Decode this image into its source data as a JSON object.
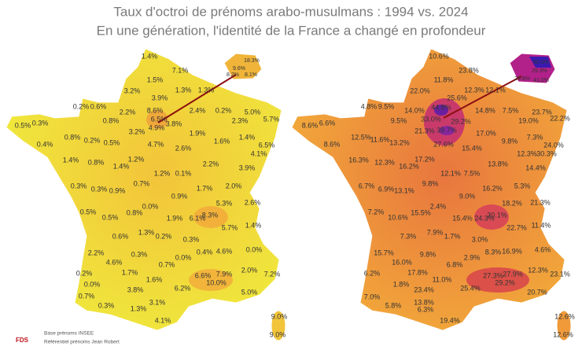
{
  "title": "Taux d'octroi de prénoms arabo-musulmans : 1994 vs. 2024",
  "subtitle": "En une génération, l'identité de la France a changé en profondeur",
  "maps": [
    {
      "labels": [
        "1.4%",
        "7.1%",
        "1.5%",
        "3.2%",
        "3.9%",
        "1.3%",
        "1.3%",
        "0.2%",
        "0.6%",
        "2.2%",
        "8.6%",
        "2.4%",
        "0.2%",
        "5.0%",
        "0.8%",
        "6.5%",
        "4.9%",
        "3.8%",
        "2.3%",
        "5.7%",
        "0.5%",
        "0.3%",
        "3.2%",
        "1.9%",
        "1.6%",
        "1.4%",
        "0.8%",
        "0.2%",
        "0.5%",
        "4.7%",
        "2.6%",
        "6.5%",
        "4.1%",
        "0.4%",
        "1.4%",
        "0.8%",
        "1.2%",
        "1.4%",
        "2.2%",
        "3.9%",
        "1.2%",
        "0.1%",
        "0.3%",
        "0.3%",
        "0.9%",
        "0.7%",
        "1.7%",
        "2.0%",
        "0.9%",
        "5.3%",
        "2.6%",
        "0.5%",
        "0.5%",
        "0.8%",
        "0.0%",
        "1.9%",
        "6.1%",
        "8.3%",
        "5.7%",
        "1.4%",
        "0.6%",
        "1.3%",
        "0.2%",
        "0.3%",
        "2.2%",
        "0.3%",
        "0.4%",
        "4.6%",
        "0.0%",
        "4.6%",
        "0.7%",
        "0.0%",
        "0.2%",
        "1.7%",
        "6.6%",
        "7.9%",
        "2.0%",
        "7.2%",
        "0.0%",
        "1.6%",
        "0.7%",
        "3.8%",
        "6.2%",
        "10.0%",
        "5.0%",
        "0.3%",
        "1.3%",
        "3.1%",
        "4.1%",
        "9.0%",
        "9.0%"
      ],
      "inset_labels": [
        "18.3%",
        "9.6%",
        "8.2%",
        "8.1%"
      ]
    },
    {
      "labels": [
        "10.6%",
        "23.8%",
        "11.8%",
        "22.0%",
        "25.6%",
        "12.3%",
        "12.1%",
        "4.8%",
        "9.5%",
        "14.0%",
        "14.8%",
        "7.5%",
        "23.7%",
        "22.2%",
        "9.5%",
        "33.0%",
        "29.2%",
        "19.0%",
        "8.6%",
        "6.6%",
        "21.3%",
        "17.0%",
        "9.8%",
        "7.3%",
        "24.0%",
        "30.3%",
        "12.5%",
        "11.6%",
        "13.2%",
        "27.6%",
        "15.4%",
        "12.3%",
        "8.6%",
        "16.3%",
        "12.3%",
        "17.2%",
        "16.2%",
        "13.8%",
        "14.4%",
        "12.1%",
        "7.5%",
        "6.7%",
        "6.9%",
        "13.1%",
        "9.8%",
        "16.2%",
        "5.3%",
        "9.0%",
        "18.2%",
        "21.3%",
        "7.2%",
        "10.6%",
        "15.5%",
        "2.4%",
        "15.4%",
        "24.3%",
        "30.1%",
        "22.7%",
        "11.4%",
        "7.3%",
        "7.9%",
        "1.7%",
        "3.0%",
        "15.7%",
        "9.8%",
        "8.3%",
        "16.9%",
        "4.6%",
        "16.0%",
        "6.8%",
        "2.9%",
        "6.2%",
        "17.8%",
        "27.3%",
        "27.9%",
        "12.3%",
        "23.1%",
        "1.8%",
        "11.0%",
        "7.0%",
        "23.4%",
        "25.4%",
        "29.2%",
        "20.7%",
        "5.8%",
        "13.8%",
        "6.3%",
        "19.4%",
        "12.6%",
        "12.6%",
        "44.8%",
        "39.7%"
      ],
      "inset_labels": [
        "60.3%",
        "29.3%",
        "29.8%",
        "41.0%"
      ]
    }
  ],
  "logo": "FDS",
  "source": [
    "Base prénoms INSEE",
    "Référentiel prénoms Jean Robert"
  ]
}
